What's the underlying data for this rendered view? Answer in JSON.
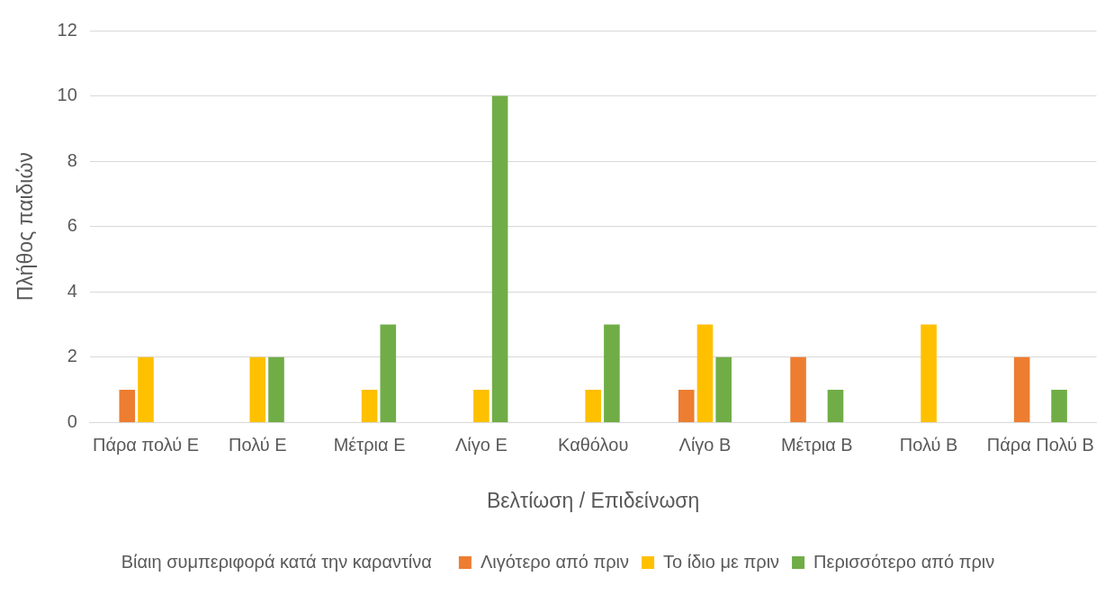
{
  "chart_data": {
    "type": "bar",
    "categories": [
      "Πάρα πολύ Ε",
      "Πολύ Ε",
      "Μέτρια Ε",
      "Λίγο Ε",
      "Καθόλου",
      "Λίγο Β",
      "Μέτρια Β",
      "Πολύ Β",
      "Πάρα Πολύ Β"
    ],
    "series": [
      {
        "name": "Λιγότερο από πριν",
        "color": "#ed7d31",
        "values": [
          1,
          0,
          0,
          0,
          0,
          1,
          2,
          0,
          2
        ]
      },
      {
        "name": "Το ίδιο με πριν",
        "color": "#ffc000",
        "values": [
          2,
          2,
          1,
          1,
          1,
          3,
          0,
          3,
          0
        ]
      },
      {
        "name": "Περισσότερο από πριν",
        "color": "#70ad47",
        "values": [
          0,
          2,
          3,
          10,
          3,
          2,
          1,
          0,
          1
        ]
      }
    ],
    "xlabel": "Βελτίωση / Επιδείνωση",
    "ylabel": "Πλήθος παιδιών",
    "ylim": [
      0,
      12
    ],
    "yticks": [
      0,
      2,
      4,
      6,
      8,
      10,
      12
    ],
    "grid": "y",
    "legend": "bottom",
    "legend_title": "Βίαιη συμπεριφορά κατά την καραντίνα"
  }
}
